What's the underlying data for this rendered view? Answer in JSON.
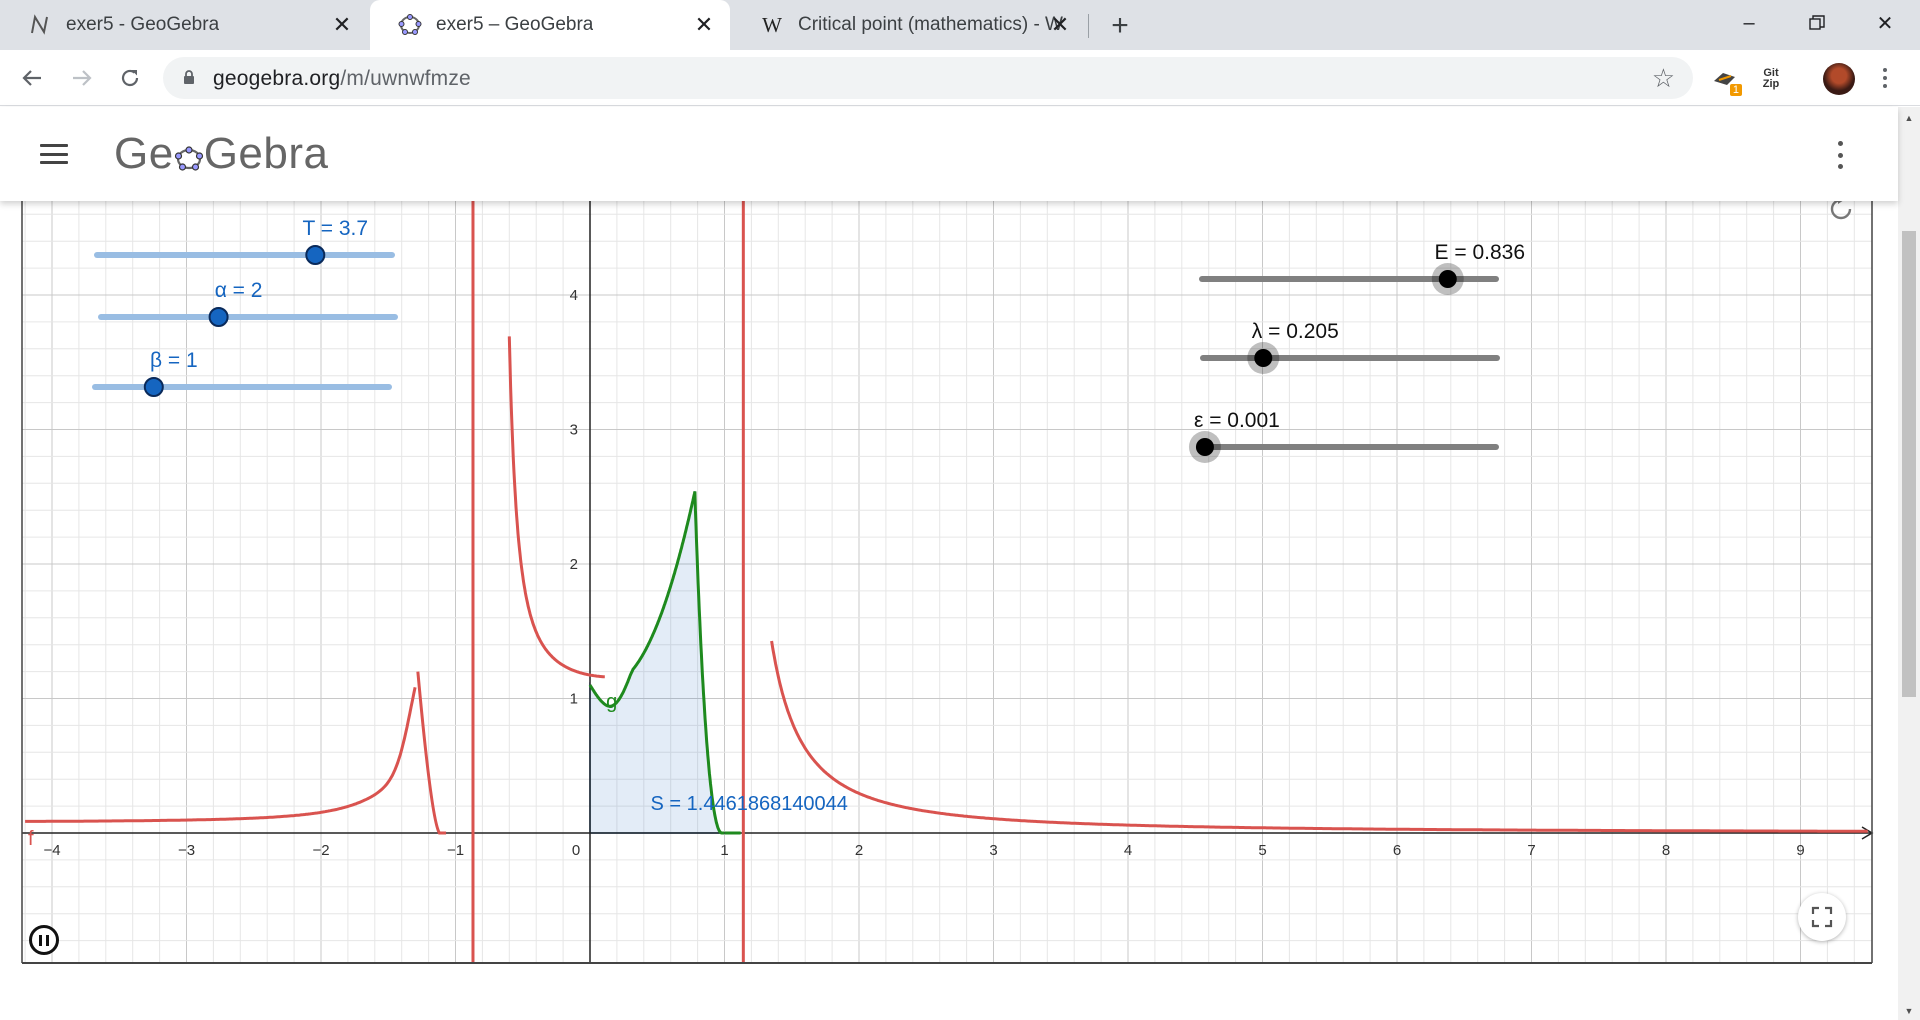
{
  "browser": {
    "tabs": [
      {
        "title": "exer5 - GeoGebra",
        "icon": "geogebra-n-icon",
        "active": false
      },
      {
        "title": "exer5 – GeoGebra",
        "icon": "geogebra-logo-icon",
        "active": true
      },
      {
        "title": "Critical point (mathematics) - W",
        "icon": "wikipedia-icon",
        "active": false
      }
    ],
    "url_host": "geogebra.org",
    "url_path": "/m/uwnwfmze",
    "extensions": {
      "badge_count": "1",
      "gitzip_line1": "Git",
      "gitzip_line2": "Zip"
    }
  },
  "app": {
    "logo_text_left": "Ge",
    "logo_text_right": "Gebra"
  },
  "sliders": [
    {
      "name": "T",
      "label": "T = 3.7",
      "value": 3.7,
      "min": 0,
      "max": 5,
      "color": "#1565c0",
      "track_color": "#99bde3"
    },
    {
      "name": "alpha",
      "label": "α = 2",
      "value": 2,
      "min": 0,
      "max": 5,
      "color": "#1565c0",
      "track_color": "#99bde3"
    },
    {
      "name": "beta",
      "label": "β = 1",
      "value": 1,
      "min": 0,
      "max": 5,
      "color": "#1565c0",
      "track_color": "#99bde3"
    },
    {
      "name": "E",
      "label": "E = 0.836",
      "value": 0.836,
      "min": 0,
      "max": 1,
      "color": "#000000",
      "track_color": "#808080"
    },
    {
      "name": "lambda",
      "label": "λ = 0.205",
      "value": 0.205,
      "min": 0,
      "max": 1,
      "color": "#000000",
      "track_color": "#808080"
    },
    {
      "name": "epsilon",
      "label": "ε = 0.001",
      "value": 0.001,
      "min": 0,
      "max": 0.1,
      "color": "#000000",
      "track_color": "#808080"
    }
  ],
  "graph": {
    "x_range": [
      -4.2,
      9.5
    ],
    "y_range": [
      -0.95,
      4.7
    ],
    "x_ticks": [
      "−4",
      "−3",
      "−2",
      "−1",
      "0",
      "1",
      "2",
      "3",
      "4",
      "5",
      "6",
      "7",
      "8",
      "9"
    ],
    "y_ticks": [
      "1",
      "2",
      "3",
      "4"
    ],
    "curve_f_label": "f",
    "curve_g_label": "g",
    "area_label": "S = 1.4461868140044",
    "colors": {
      "f": "#d9534f",
      "g": "#1e8a1e",
      "area": "#1565c0",
      "grid": "#e6e6e6",
      "grid_major": "#c8c8c8"
    }
  }
}
